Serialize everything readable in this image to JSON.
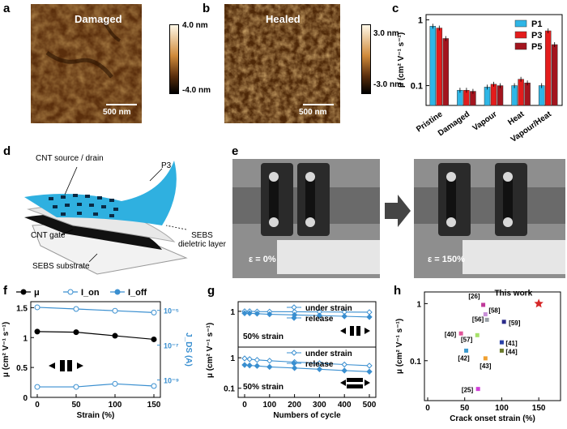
{
  "panels": {
    "a": {
      "label": "a",
      "title": "Damaged",
      "scale": "500 nm",
      "cb_max": "4.0 nm",
      "cb_min": "-4.0 nm"
    },
    "b": {
      "label": "b",
      "title": "Healed",
      "scale": "500 nm",
      "cb_max": "3.0 nm",
      "cb_min": "-3.0 nm"
    },
    "c": {
      "label": "c"
    },
    "d": {
      "label": "d",
      "cnt_sd": "CNT source / drain",
      "p3": "P3",
      "cnt_gate": "CNT gate",
      "substrate": "SEBS substrate",
      "dielectric_1": "SEBS",
      "dielectric_2": "dieletric layer"
    },
    "e": {
      "label": "e",
      "strain_left": "ε = 0%",
      "strain_right": "ε = 150%"
    },
    "f": {
      "label": "f"
    },
    "g": {
      "label": "g"
    },
    "h": {
      "label": "h"
    }
  },
  "colors": {
    "p1": "#2fb6e6",
    "p3": "#e41c1c",
    "p5": "#a3141e",
    "blue": "#3a8fd0"
  },
  "chart_data": [
    {
      "panel": "c",
      "type": "bar",
      "categories": [
        "Pristine",
        "Damaged",
        "Vapour",
        "Heat",
        "Vapour/Heat"
      ],
      "series": [
        {
          "name": "P1",
          "values": [
            0.8,
            0.085,
            0.095,
            0.1,
            0.1
          ]
        },
        {
          "name": "P3",
          "values": [
            0.75,
            0.085,
            0.105,
            0.125,
            0.68
          ]
        },
        {
          "name": "P5",
          "values": [
            0.52,
            0.082,
            0.1,
            0.11,
            0.42
          ]
        }
      ],
      "ylabel": "μ (cm² V⁻¹ s⁻¹)",
      "yscale": "log",
      "ylim": [
        0.05,
        1.2
      ],
      "yticks": [
        "0.1",
        "1"
      ],
      "legend": "top-right"
    },
    {
      "panel": "f",
      "type": "line",
      "x": [
        0,
        50,
        100,
        150
      ],
      "xticks": [
        "0",
        "50",
        "100",
        "150"
      ],
      "xlabel": "Strain (%)",
      "ylabel_left": "μ (cm² V⁻¹ s⁻¹)",
      "ylabel_right": "J_DS (A)",
      "yticks_left": [
        "0",
        "0.5",
        "1",
        "1.5"
      ],
      "yticks_right": [
        "10⁻⁵",
        "10⁻⁷",
        "10⁻⁹"
      ],
      "series": [
        {
          "name": "μ",
          "values": [
            1.1,
            1.09,
            1.03,
            0.97
          ]
        },
        {
          "name": "I_on",
          "values": [
            1.5e-05,
            1.2e-05,
            9.5e-06,
            7.5e-06
          ]
        },
        {
          "name": "I_off",
          "values": [
            4e-10,
            4e-10,
            6e-10,
            4.5e-10
          ]
        }
      ],
      "legend": "top"
    },
    {
      "panel": "g",
      "type": "line",
      "x": [
        0,
        20,
        50,
        100,
        200,
        300,
        400,
        500
      ],
      "xticks": [
        "0",
        "100",
        "200",
        "300",
        "400",
        "500"
      ],
      "xlabel": "Numbers of cycle",
      "ylabel": "μ (cm² V⁻¹ s⁻¹)",
      "subplots": [
        {
          "annotation": "50% strain",
          "yticks": [
            "1"
          ],
          "series": [
            {
              "name": "under strain",
              "values": [
                1.0,
                1.0,
                0.98,
                0.97,
                0.96,
                0.95,
                0.94,
                0.93
              ]
            },
            {
              "name": "release",
              "values": [
                0.85,
                0.85,
                0.82,
                0.78,
                0.74,
                0.7,
                0.66,
                0.62
              ]
            }
          ]
        },
        {
          "annotation": "50% strain",
          "yticks": [
            "1",
            "0.1"
          ],
          "series": [
            {
              "name": "under strain",
              "values": [
                0.95,
                0.9,
                0.85,
                0.8,
                0.72,
                0.66,
                0.6,
                0.55
              ]
            },
            {
              "name": "release",
              "values": [
                0.58,
                0.56,
                0.54,
                0.5,
                0.46,
                0.42,
                0.38,
                0.35
              ]
            }
          ]
        }
      ]
    },
    {
      "panel": "h",
      "type": "scatter",
      "xlabel": "Crack onset strain (%)",
      "ylabel": "μ (cm² V⁻¹ s⁻¹)",
      "xticks": [
        "0",
        "50",
        "100",
        "150"
      ],
      "yticks": [
        "0.1",
        "1"
      ],
      "points": [
        {
          "label": "This work",
          "x": 150,
          "y": 1.0,
          "color": "#d62728"
        },
        {
          "label": "[26]",
          "x": 75,
          "y": 0.95,
          "color": "#c0399a"
        },
        {
          "label": "[58]",
          "x": 78,
          "y": 0.65,
          "color": "#c890d8"
        },
        {
          "label": "[56]",
          "x": 80,
          "y": 0.52,
          "color": "#9aa0a6"
        },
        {
          "label": "[59]",
          "x": 103,
          "y": 0.48,
          "color": "#2c2c8a"
        },
        {
          "label": "[40]",
          "x": 45,
          "y": 0.3,
          "color": "#e0559a"
        },
        {
          "label": "[57]",
          "x": 67,
          "y": 0.28,
          "color": "#a6e06a"
        },
        {
          "label": "[41]",
          "x": 100,
          "y": 0.21,
          "color": "#2840a8"
        },
        {
          "label": "[42]",
          "x": 52,
          "y": 0.15,
          "color": "#3a9ad0"
        },
        {
          "label": "[44]",
          "x": 100,
          "y": 0.15,
          "color": "#6b7a2a"
        },
        {
          "label": "[43]",
          "x": 78,
          "y": 0.11,
          "color": "#f0a030"
        },
        {
          "label": "[25]",
          "x": 68,
          "y": 0.032,
          "color": "#d040d8"
        }
      ]
    }
  ]
}
